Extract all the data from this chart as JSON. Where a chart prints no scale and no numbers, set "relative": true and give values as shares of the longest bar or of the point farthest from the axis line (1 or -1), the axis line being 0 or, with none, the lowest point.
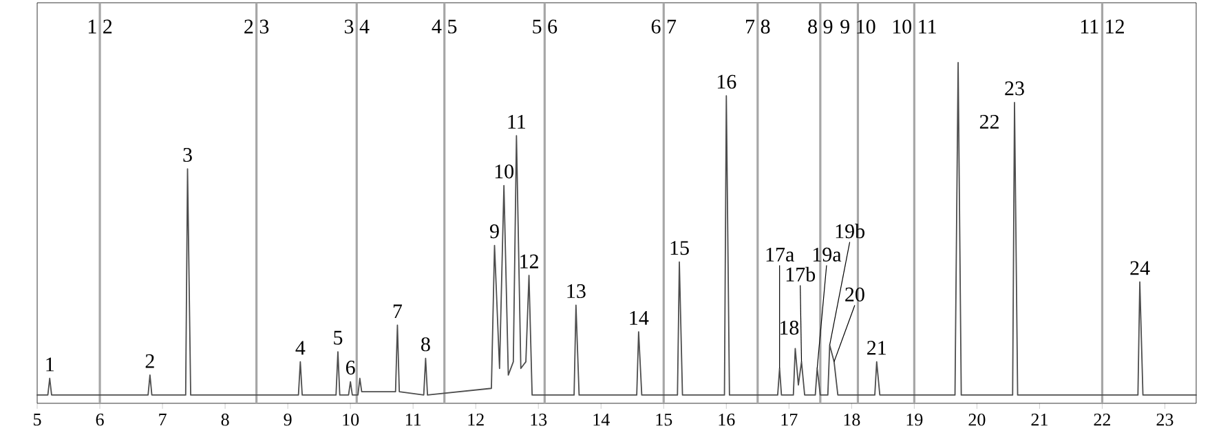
{
  "chart_data": {
    "type": "line",
    "relative": true,
    "tick_labels": "x",
    "grid": false,
    "marker": "none",
    "line_style": "solid",
    "xlim": [
      5,
      23.5
    ],
    "xticks": [
      5,
      6,
      7,
      8,
      9,
      10,
      11,
      12,
      13,
      14,
      15,
      16,
      17,
      18,
      19,
      20,
      21,
      22,
      23
    ],
    "series": [
      {
        "color": "#4d4d4d",
        "x": [
          5.0,
          5.17,
          5.2,
          5.23,
          6.77,
          6.8,
          6.83,
          7.37,
          7.4,
          7.45,
          9.17,
          9.2,
          9.23,
          9.77,
          9.8,
          9.83,
          9.97,
          10.0,
          10.03,
          10.12,
          10.15,
          10.18,
          10.72,
          10.75,
          10.78,
          11.17,
          11.2,
          11.23,
          12.25,
          12.3,
          12.38,
          12.45,
          12.52,
          12.6,
          12.65,
          12.72,
          12.8,
          12.85,
          12.9,
          13.57,
          13.6,
          13.65,
          14.57,
          14.6,
          14.65,
          15.22,
          15.25,
          15.3,
          15.97,
          16.0,
          16.05,
          16.82,
          16.85,
          16.88,
          17.07,
          17.1,
          17.15,
          17.2,
          17.25,
          17.42,
          17.45,
          17.5,
          17.62,
          17.65,
          17.72,
          17.78,
          18.37,
          18.4,
          18.45,
          19.65,
          19.7,
          19.75,
          20.57,
          20.6,
          20.65,
          22.57,
          22.6,
          22.65,
          23.5
        ],
        "values": [
          0,
          0,
          0.05,
          0,
          0,
          0.06,
          0,
          0,
          0.68,
          0,
          0,
          0.1,
          0,
          0,
          0.13,
          0,
          0,
          0.04,
          0,
          0,
          0.05,
          0.01,
          0.01,
          0.21,
          0.01,
          0,
          0.11,
          0,
          0.02,
          0.45,
          0.08,
          0.63,
          0.06,
          0.1,
          0.78,
          0.08,
          0.1,
          0.36,
          0,
          0,
          0.27,
          0,
          0,
          0.19,
          0,
          0,
          0.4,
          0,
          0,
          0.9,
          0,
          0,
          0.08,
          0,
          0,
          0.14,
          0.03,
          0.1,
          0,
          0,
          0.08,
          0,
          0,
          0.15,
          0.1,
          0,
          0,
          0.1,
          0,
          0,
          1.0,
          0,
          0,
          0.88,
          0,
          0,
          0.34,
          0,
          0
        ]
      }
    ],
    "ref_lines": [
      {
        "axis": "x",
        "value": 6,
        "color": "#a6a6a6"
      },
      {
        "axis": "x",
        "value": 8.5,
        "color": "#a6a6a6"
      },
      {
        "axis": "x",
        "value": 10.1,
        "color": "#a6a6a6"
      },
      {
        "axis": "x",
        "value": 11.5,
        "color": "#a6a6a6"
      },
      {
        "axis": "x",
        "value": 13.1,
        "color": "#a6a6a6"
      },
      {
        "axis": "x",
        "value": 15,
        "color": "#a6a6a6"
      },
      {
        "axis": "x",
        "value": 16.5,
        "color": "#a6a6a6"
      },
      {
        "axis": "x",
        "value": 17.5,
        "color": "#a6a6a6"
      },
      {
        "axis": "x",
        "value": 18.1,
        "color": "#a6a6a6"
      },
      {
        "axis": "x",
        "value": 19,
        "color": "#a6a6a6"
      },
      {
        "axis": "x",
        "value": 22,
        "color": "#a6a6a6"
      }
    ],
    "annotations": [
      {
        "text": "1",
        "x": 5.2,
        "y": 0.05
      },
      {
        "text": "2",
        "x": 6.8,
        "y": 0.06
      },
      {
        "text": "3",
        "x": 7.4,
        "y": 0.68
      },
      {
        "text": "4",
        "x": 9.2,
        "y": 0.1
      },
      {
        "text": "5",
        "x": 9.8,
        "y": 0.13
      },
      {
        "text": "6",
        "x": 10.0,
        "y": 0.04
      },
      {
        "text": "7",
        "x": 10.75,
        "y": 0.21
      },
      {
        "text": "8",
        "x": 11.2,
        "y": 0.11
      },
      {
        "text": "9",
        "x": 12.3,
        "y": 0.45
      },
      {
        "text": "10",
        "x": 12.45,
        "y": 0.63
      },
      {
        "text": "11",
        "x": 12.65,
        "y": 0.78
      },
      {
        "text": "12",
        "x": 12.85,
        "y": 0.36
      },
      {
        "text": "13",
        "x": 13.6,
        "y": 0.27
      },
      {
        "text": "14",
        "x": 14.6,
        "y": 0.19
      },
      {
        "text": "15",
        "x": 15.25,
        "y": 0.4
      },
      {
        "text": "16",
        "x": 16.0,
        "y": 0.9
      },
      {
        "text": "17a",
        "x": 16.85,
        "y": 0.08
      },
      {
        "text": "17b",
        "x": 17.2,
        "y": 0.1
      },
      {
        "text": "18",
        "x": 17.1,
        "y": 0.14
      },
      {
        "text": "19a",
        "x": 17.45,
        "y": 0.08
      },
      {
        "text": "19b",
        "x": 17.65,
        "y": 0.15
      },
      {
        "text": "20",
        "x": 17.72,
        "y": 0.1
      },
      {
        "text": "21",
        "x": 18.4,
        "y": 0.1
      },
      {
        "text": "22",
        "x": 19.7,
        "y": 1.0
      },
      {
        "text": "23",
        "x": 20.6,
        "y": 0.88
      },
      {
        "text": "24",
        "x": 22.6,
        "y": 0.34
      },
      {
        "text": "1 2",
        "x": 6
      },
      {
        "text": "2 3",
        "x": 8.5
      },
      {
        "text": "3 4",
        "x": 10.1
      },
      {
        "text": "4 5",
        "x": 11.5
      },
      {
        "text": "5 6",
        "x": 13.1
      },
      {
        "text": "6 7",
        "x": 15
      },
      {
        "text": "7 8",
        "x": 16.5
      },
      {
        "text": "8 9",
        "x": 17.5
      },
      {
        "text": "9 10",
        "x": 18.1
      },
      {
        "text": "10 11",
        "x": 19
      },
      {
        "text": "11 12",
        "x": 22
      }
    ]
  }
}
